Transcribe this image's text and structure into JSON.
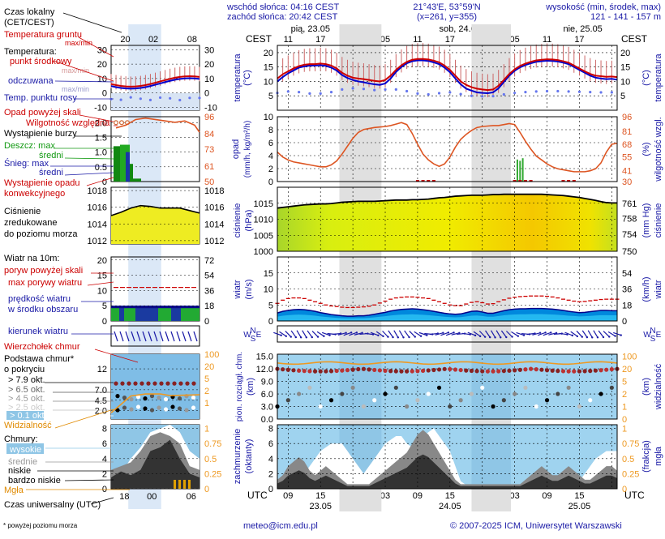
{
  "header": {
    "sunrise": "wschód słońca: 04:16 CEST",
    "sunset": "zachód słońca: 20:42 CEST",
    "coords": "21°43'E, 53°59'N",
    "grid": "(x=261, y=355)",
    "elevation_title": "wysokość (min, środek, max)",
    "elevation_values": "121 - 141 - 157 m"
  },
  "footer": {
    "email": "meteo@icm.edu.pl",
    "copyright": "© 2007-2025 ICM, Uniwersytet Warszawski",
    "note": "* powyżej poziomu morza"
  },
  "legend": {
    "local_time": "Czas lokalny",
    "local_time_zone": "(CET/CEST)",
    "soil_temp": "Temperatura gruntu",
    "soil_range": "max/min",
    "temp_title": "Temperatura:",
    "temp_mid": "punkt środkowy",
    "temp_maxmin": "max/min",
    "temp_felt": "odczuwana",
    "temp_felt_maxmin": "max/min",
    "dewpoint": "Temp. punktu rosy",
    "precip_above": "Opad powyżej skali",
    "humidity": "Wilgotność względna",
    "storm": "Wystąpienie burzy",
    "rain_max": "Deszcz: max",
    "rain_mid": "średni",
    "snow_max": "Śnieg:   max",
    "snow_mid": "średni",
    "conv": "Wystąpienie opadu",
    "conv2": "konwekcyjnego",
    "pressure1": "Ciśnienie",
    "pressure2": "zredukowane",
    "pressure3": "do poziomu morza",
    "wind_title": "Wiatr na 10m:",
    "gust_above": "poryw powyżej skali",
    "gust_max": "max porywy wiatru",
    "wind_speed": "prędkość wiatru",
    "wind_area": "w środku obszaru",
    "wind_dir": "kierunek wiatru",
    "cloud_top": "Wierzchołek chmur",
    "cloud_base1": "Podstawa chmur*",
    "cloud_base2": "o pokryciu",
    "okt1": "> 7.9 okt.",
    "okt2": "> 6.5 okt.",
    "okt3": "> 4.5 okt.",
    "okt4": "> 2.5 okt.",
    "okt5": "> 0.1 okt.",
    "visibility": "Widzialność",
    "clouds": "Chmury:",
    "cl_high": "wysokie",
    "cl_mid": "średnie",
    "cl_low": "niskie",
    "cl_vlow": "bardzo niskie",
    "fog": "Mgła",
    "utc_time": "Czas uniwersalny (UTC)",
    "mini_top_hours": [
      "20",
      "02",
      "08"
    ],
    "mini_bottom_hours": [
      "18",
      "00",
      "06"
    ]
  },
  "axes": {
    "cest": "CEST",
    "utc": "UTC",
    "days_top": [
      "pią, 23.05",
      "sob, 24.05",
      "nie, 25.05"
    ],
    "hours_top": [
      "11",
      "17",
      "23",
      "05",
      "11",
      "17",
      "23",
      "05",
      "11",
      "17"
    ],
    "hours_bottom": [
      "09",
      "15",
      "21",
      "03",
      "09",
      "15",
      "21",
      "03",
      "09",
      "15"
    ],
    "days_bottom": [
      "23.05",
      "24.05",
      "25.05"
    ]
  },
  "panels": {
    "temperature": {
      "label1": "temperatura",
      "label2": "(°C)",
      "ticks": [
        "20",
        "15",
        "10",
        "5"
      ],
      "mini_ticks": [
        "30",
        "20",
        "10",
        "0",
        "-10"
      ]
    },
    "precip": {
      "label1": "opad",
      "label2": "(mm/h, kg/m²/h)",
      "ticks": [
        "10",
        "8",
        "6",
        "4",
        "2",
        "0"
      ],
      "right1": "(%)",
      "right2": "wilgotność wzgl.",
      "right_ticks": [
        "96",
        "81",
        "68",
        "55",
        "41",
        "30"
      ],
      "mini_ticks": [
        "2.0",
        "1.5",
        "1.0",
        "0.5",
        "0"
      ],
      "mini_right_ticks": [
        "96",
        "84",
        "73",
        "61",
        "50"
      ]
    },
    "pressure": {
      "label1": "ciśnienie",
      "label2": "(hPa)",
      "ticks": [
        "1015",
        "1010",
        "1005",
        "1000"
      ],
      "right1": "(mm Hg)",
      "right2": "ciśnienie",
      "right_ticks": [
        "761",
        "758",
        "754",
        "750"
      ],
      "mini_ticks": [
        "1018",
        "1016",
        "1014",
        "1012"
      ],
      "mini_right_ticks": [
        "1018",
        "1016",
        "1014",
        "1012"
      ]
    },
    "wind": {
      "label1": "wiatr",
      "label2": "(m/s)",
      "ticks": [
        "15",
        "10",
        "5",
        "0"
      ],
      "right1": "(km/h)",
      "right2": "wiatr",
      "right_ticks": [
        "54",
        "36",
        "18",
        "0"
      ],
      "mini_ticks": [
        "20",
        "15",
        "10",
        "5",
        "0"
      ],
      "mini_right_ticks": [
        "72",
        "54",
        "36",
        "18",
        "0"
      ]
    },
    "cloudbase": {
      "label1": "pion. rozciągł. chm.",
      "label2": "(km)",
      "ticks": [
        "15.0",
        "12.0",
        "9.0",
        "6.0",
        "3.0",
        "0.0"
      ],
      "right1": "(km)",
      "right2": "widzialność",
      "right_ticks": [
        "100",
        "20",
        "5",
        "2",
        "1",
        "0"
      ],
      "mini_ticks": [
        "12",
        "7.0",
        "4.5",
        "2.0"
      ],
      "mini_right_ticks": [
        "100",
        "20",
        "5",
        "2",
        "1"
      ]
    },
    "clouds": {
      "label1": "zachmurzenie",
      "label2": "(oktanty)",
      "ticks": [
        "8",
        "6",
        "4",
        "2",
        "0"
      ],
      "right1": "(frakcja)",
      "right2": "mgła",
      "right_ticks": [
        "1",
        "0.75",
        "0.5",
        "0.25",
        "0"
      ],
      "mini_ticks": [
        "8",
        "6",
        "4",
        "2",
        "0"
      ],
      "mini_right_ticks": [
        "1",
        "0.75",
        "0.5",
        "0.25",
        "0"
      ]
    }
  },
  "compass": {
    "n": "N",
    "w": "W",
    "e": "E",
    "s": "S"
  },
  "colors": {
    "temp_line": "#cc0000",
    "felt_line": "#0000cc",
    "dew_dots": "#6677ee",
    "humidity": "#dd5522",
    "pressure_line": "#000000",
    "wind_area": "#0088dd",
    "gust": "#cc0000",
    "night": "#e0e0e0",
    "cloud_sky": "#9fd3ef",
    "visibility": "#ee9922",
    "label_blue": "#1a1aa6",
    "label_red": "#cc0000"
  },
  "chart_data": {
    "type": "line",
    "x_hours_utc": [
      7,
      8,
      9,
      10,
      11,
      12,
      13,
      14,
      15,
      16,
      17,
      18,
      19,
      20,
      21,
      22,
      23,
      24,
      25,
      26,
      27,
      28,
      29,
      30,
      31,
      32,
      33,
      34,
      35,
      36,
      37,
      38,
      39,
      40,
      41,
      42,
      43,
      44,
      45,
      46,
      47,
      48,
      49,
      50,
      51,
      52,
      53,
      54,
      55,
      56,
      57,
      58,
      59,
      60,
      61,
      62,
      63,
      64,
      65,
      66,
      67,
      68,
      69,
      70
    ],
    "temperature_c": [
      11,
      12.5,
      13.5,
      14.5,
      15.3,
      15.8,
      16,
      16,
      16.2,
      16,
      15.5,
      14.5,
      13,
      12,
      11.3,
      11,
      10.8,
      10.5,
      10.2,
      10,
      10.5,
      12,
      14,
      15.6,
      16.8,
      17.5,
      17.8,
      17.8,
      17.6,
      17.2,
      16.6,
      15.5,
      14,
      12,
      10,
      8.8,
      8,
      7.5,
      7.2,
      7,
      7.2,
      8.5,
      10.5,
      12.6,
      14.2,
      15.4,
      16.2,
      16.8,
      17.3,
      17.5,
      17.7,
      17.6,
      17.4,
      17,
      16.5,
      15.5,
      14.5,
      13.5,
      12.6,
      12,
      11.8,
      11.6,
      11.7,
      11.5
    ],
    "felt_c": [
      10,
      11.5,
      12.8,
      13.8,
      14.8,
      15.2,
      15.5,
      15.5,
      15.6,
      15.4,
      14.8,
      13.8,
      12.2,
      11.2,
      10.5,
      10,
      9.7,
      9.3,
      9,
      8.8,
      9.3,
      11,
      13.3,
      15,
      16.3,
      17,
      17.3,
      17.3,
      17.1,
      16.6,
      16,
      14.8,
      13.2,
      11,
      9,
      7.5,
      6.8,
      6.2,
      6,
      5.9,
      6.2,
      7.6,
      9.8,
      12,
      13.7,
      14.9,
      15.7,
      16.3,
      16.8,
      17,
      17.2,
      17.1,
      16.9,
      16.5,
      16,
      15,
      14,
      13,
      12,
      11.3,
      11,
      10.8,
      10.9,
      10.6
    ],
    "dewpoint_c": [
      6,
      6.3,
      6.5,
      6.5,
      6.3,
      6,
      5.8,
      5.7,
      5.8,
      6,
      6.3,
      6.8,
      7.2,
      7.5,
      7.6,
      7.5,
      7.4,
      7.2,
      7,
      7,
      7.2,
      7.4,
      7.2,
      6.9,
      6.6,
      6.2,
      5.8,
      5.6,
      5.5,
      5.6,
      5.9,
      6.2,
      6.2,
      6,
      5.6,
      5.2,
      5,
      4.9,
      4.8,
      4.8,
      4.9,
      5.2,
      5.5,
      5.8,
      6,
      6.2,
      6.3,
      6.4,
      6.5,
      6.6,
      6.6,
      6.6,
      6.6,
      6.6,
      6.5,
      6.5,
      6.4,
      6.4,
      6.3,
      6.3,
      6.2,
      6.2,
      6.2,
      6.2
    ],
    "humidity_pct": [
      60,
      55,
      52,
      50,
      49,
      48,
      47,
      46,
      45,
      45,
      47,
      51,
      58,
      66,
      74,
      80,
      83,
      84,
      85,
      85.5,
      86,
      87,
      88.5,
      90,
      88,
      79,
      68,
      58,
      52,
      48,
      45.5,
      48,
      55,
      65,
      73,
      78,
      82,
      85,
      86,
      86.5,
      87,
      87,
      88,
      89,
      88,
      80,
      71,
      63,
      56,
      52,
      48,
      45,
      43,
      42,
      41,
      40,
      40,
      40,
      41,
      43,
      49,
      60,
      68,
      69
    ],
    "pressure_hpa": [
      1013.5,
      1013.7,
      1013.9,
      1014.1,
      1014.3,
      1014.5,
      1014.6,
      1014.7,
      1014.8,
      1014.8,
      1014.9,
      1015.1,
      1015.3,
      1015.4,
      1015.5,
      1015.6,
      1015.6,
      1015.6,
      1015.6,
      1015.7,
      1015.8,
      1015.9,
      1016,
      1016,
      1016,
      1016.1,
      1016.1,
      1016.2,
      1016.3,
      1016.5,
      1016.7,
      1016.8,
      1017,
      1017.2,
      1017.3,
      1017.4,
      1017.5,
      1017.5,
      1017.5,
      1017.6,
      1017.7,
      1017.7,
      1017.8,
      1017.8,
      1017.8,
      1017.8,
      1017.8,
      1017.8,
      1017.8,
      1017.8,
      1017.7,
      1017.6,
      1017.5,
      1017.4,
      1017.2,
      1017,
      1016.8,
      1016.5,
      1016.2,
      1015.9,
      1015.5,
      1015.2,
      1015.1,
      1015.1
    ],
    "wind_ms": [
      2.5,
      3,
      3.3,
      3.5,
      3.6,
      3.5,
      3.3,
      3,
      2.6,
      2.3,
      2,
      1.8,
      1.6,
      1.5,
      1.5,
      1.6,
      1.6,
      1.8,
      2.1,
      2.4,
      2.7,
      3.1,
      3.4,
      3.6,
      3.7,
      3.8,
      3.7,
      3.5,
      3.3,
      3,
      2.7,
      2.4,
      2.2,
      2.1,
      2.2,
      2.6,
      3,
      3.1,
      2.8,
      2.4,
      2.4,
      2.8,
      3.2,
      3.5,
      3.7,
      3.8,
      3.8,
      3.9,
      3.9,
      3.9,
      3.8,
      3.7,
      3.5,
      3.3,
      3,
      2.8,
      2.6,
      2.7,
      2.9,
      3.1,
      3.3,
      3.3,
      3.2,
      3.2
    ],
    "gust_ms": [
      5.5,
      6.5,
      7,
      7.2,
      7.2,
      7,
      6.5,
      6,
      5.5,
      5,
      4.7,
      4.5,
      4.3,
      4.2,
      4.2,
      4.3,
      4.4,
      4.6,
      5,
      5.6,
      6.2,
      6.8,
      7.2,
      7.4,
      7.5,
      7.5,
      7.4,
      7.2,
      7,
      6.5,
      6,
      5.5,
      5,
      4.8,
      4.8,
      5.3,
      5.8,
      6,
      5.7,
      5.3,
      5.4,
      6,
      6.6,
      7.1,
      7.4,
      7.6,
      7.7,
      7.8,
      7.8,
      7.8,
      7.7,
      7.5,
      7.2,
      6.8,
      6.5,
      6.2,
      6,
      6.1,
      6.3,
      6.5,
      6.7,
      6.8,
      6.8,
      6.8
    ],
    "cloud_high_okt": [
      0,
      0,
      0,
      0,
      1,
      2,
      3,
      4,
      5,
      5.5,
      6,
      6,
      6,
      5,
      4,
      3,
      2,
      3,
      4,
      5,
      6,
      6.5,
      7,
      7,
      6,
      5.5,
      6,
      7,
      7.5,
      8,
      7,
      6,
      5,
      3,
      1,
      0.5,
      0,
      0,
      0,
      0,
      0,
      0,
      0,
      0,
      0,
      0,
      0,
      0,
      0,
      0,
      0,
      0,
      0,
      0,
      0,
      0.5,
      1,
      2,
      3,
      4,
      4.5,
      5,
      5,
      5
    ],
    "cloud_low_okt": [
      1,
      1.5,
      2.5,
      3,
      3.5,
      3,
      2,
      1.5,
      2,
      2.5,
      2,
      1.5,
      1,
      0.5,
      0.5,
      0.5,
      0.5,
      0.5,
      1,
      1.5,
      2,
      2.5,
      3,
      3.5,
      4,
      5,
      6,
      6.5,
      6,
      5,
      4,
      3,
      2,
      1,
      0.5,
      0.5,
      0.5,
      0.5,
      0.5,
      0.5,
      0.5,
      0.5,
      0.5,
      0.5,
      0.5,
      0.5,
      1,
      1.5,
      2,
      2.5,
      2,
      1.5,
      1.5,
      2,
      2.5,
      2,
      1.5,
      1,
      1,
      1.5,
      2,
      2.5,
      2.5,
      2
    ],
    "visibility_km": [
      20,
      21,
      22,
      22,
      22,
      22,
      22,
      22,
      22,
      22,
      22,
      22,
      22,
      22,
      22,
      22,
      22,
      22,
      22,
      22,
      22,
      22,
      22,
      22,
      22,
      22,
      22,
      22,
      22,
      22,
      22,
      22,
      22,
      22,
      22,
      22,
      22,
      22,
      22,
      22,
      22,
      22,
      22,
      22,
      22,
      22,
      22,
      22,
      22,
      22,
      22,
      22,
      22,
      22,
      22,
      22,
      22,
      22,
      22,
      22,
      22,
      22,
      22,
      22
    ],
    "precip_bars": [
      {
        "x": 51.5,
        "value": 3.4
      },
      {
        "x": 52.0,
        "value": 3.2
      },
      {
        "x": 52.5,
        "value": 3.6
      }
    ]
  }
}
